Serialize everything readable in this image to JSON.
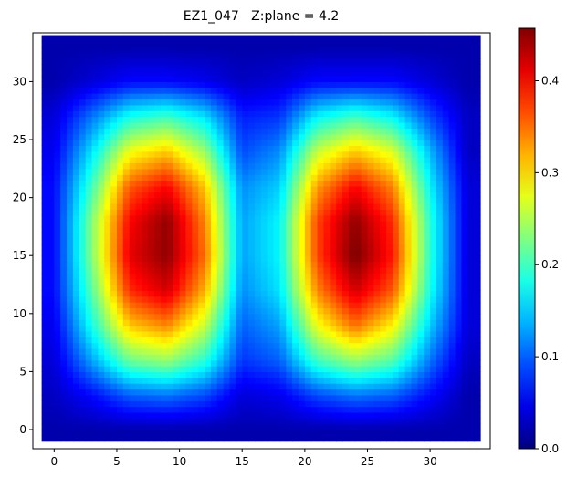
{
  "chart_data": {
    "type": "heatmap",
    "title": "EZ1_047   Z:plane = 4.2",
    "xlabel": "",
    "ylabel": "",
    "xlim": [
      -1.7,
      34.8
    ],
    "ylim": [
      -1.65,
      34.2
    ],
    "xticks": [
      0,
      5,
      10,
      15,
      20,
      25,
      30
    ],
    "yticks": [
      0,
      5,
      10,
      15,
      20,
      25,
      30
    ],
    "colormap": "jet",
    "colorbar": {
      "range": [
        0.0,
        0.457
      ],
      "ticks": [
        "0.0",
        "0.1",
        "0.2",
        "0.3",
        "0.4"
      ]
    },
    "grid": false,
    "x": [
      0,
      3,
      6,
      9,
      12,
      15,
      18,
      21,
      24,
      27,
      30,
      33
    ],
    "y": [
      0,
      3,
      6,
      9,
      12,
      15,
      18,
      21,
      24,
      27,
      30,
      33
    ],
    "values": [
      [
        0.02,
        0.02,
        0.02,
        0.02,
        0.02,
        0.02,
        0.02,
        0.02,
        0.02,
        0.02,
        0.02,
        0.02
      ],
      [
        0.03,
        0.06,
        0.1,
        0.11,
        0.09,
        0.04,
        0.05,
        0.09,
        0.11,
        0.1,
        0.06,
        0.02
      ],
      [
        0.04,
        0.13,
        0.22,
        0.24,
        0.19,
        0.08,
        0.1,
        0.2,
        0.24,
        0.21,
        0.11,
        0.03
      ],
      [
        0.05,
        0.18,
        0.31,
        0.34,
        0.26,
        0.1,
        0.13,
        0.28,
        0.35,
        0.29,
        0.15,
        0.04
      ],
      [
        0.06,
        0.21,
        0.38,
        0.42,
        0.32,
        0.12,
        0.16,
        0.34,
        0.42,
        0.36,
        0.18,
        0.04
      ],
      [
        0.06,
        0.23,
        0.41,
        0.45,
        0.35,
        0.13,
        0.17,
        0.37,
        0.46,
        0.39,
        0.19,
        0.04
      ],
      [
        0.06,
        0.23,
        0.4,
        0.45,
        0.34,
        0.13,
        0.17,
        0.37,
        0.45,
        0.38,
        0.19,
        0.04
      ],
      [
        0.06,
        0.2,
        0.36,
        0.4,
        0.31,
        0.12,
        0.15,
        0.33,
        0.4,
        0.34,
        0.17,
        0.04
      ],
      [
        0.05,
        0.16,
        0.28,
        0.31,
        0.24,
        0.09,
        0.12,
        0.26,
        0.31,
        0.27,
        0.14,
        0.03
      ],
      [
        0.04,
        0.11,
        0.18,
        0.2,
        0.16,
        0.07,
        0.08,
        0.17,
        0.2,
        0.17,
        0.09,
        0.03
      ],
      [
        0.02,
        0.04,
        0.06,
        0.06,
        0.05,
        0.03,
        0.04,
        0.06,
        0.06,
        0.06,
        0.04,
        0.02
      ],
      [
        0.02,
        0.02,
        0.02,
        0.02,
        0.02,
        0.02,
        0.02,
        0.02,
        0.02,
        0.02,
        0.02,
        0.02
      ]
    ],
    "data_extent": {
      "x": [
        -1,
        34
      ],
      "y": [
        -1,
        34
      ]
    }
  }
}
